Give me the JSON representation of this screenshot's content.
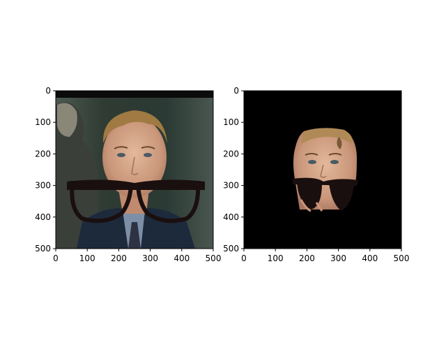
{
  "colors": {
    "background": "#ffffff",
    "axes_frame": "#000000",
    "tick_label": "#000000",
    "right_panel_background": "#000000",
    "glasses_frame": "#1a0f0f"
  },
  "panels": [
    {
      "description_key": "left",
      "content": "portrait photo with glasses overlay",
      "x_ticks": [
        "0",
        "100",
        "200",
        "300",
        "400",
        "500"
      ],
      "y_ticks": [
        "0",
        "100",
        "200",
        "300",
        "400",
        "500"
      ]
    },
    {
      "description_key": "right",
      "content": "segmented face on black background with glasses overlay",
      "x_ticks": [
        "0",
        "100",
        "200",
        "300",
        "400",
        "500"
      ],
      "y_ticks": [
        "0",
        "100",
        "200",
        "300",
        "400",
        "500"
      ]
    }
  ]
}
